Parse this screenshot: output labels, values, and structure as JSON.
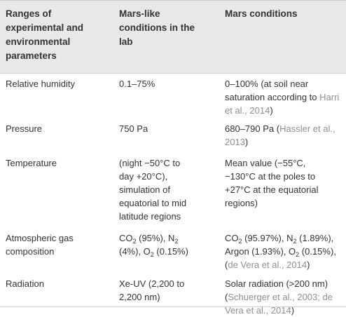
{
  "header": {
    "col1": "Ranges of\nexperimental and\nenvironmental\nparameters",
    "col2": "Mars-like\nconditions in the\nlab",
    "col3": "Mars conditions"
  },
  "rows": [
    {
      "parameter": "Relative humidity",
      "lab": "0.1–75%",
      "mars_text": "0–100% (at soil near\nsaturation according to ",
      "mars_ref": "Harri\net al., 2014",
      "mars_tail": ")"
    },
    {
      "parameter": "Pressure",
      "lab": "750 Pa",
      "mars_text": "680–790 Pa (",
      "mars_ref": "Hassler et al.,\n2013",
      "mars_tail": ")"
    },
    {
      "parameter": "Temperature",
      "lab": "(night −50°C to\nday +20°C),\nsimulation of\nequatorial to mid\nlatitude regions",
      "mars_text": "Mean value (−55°C,\n−130°C at the poles to\n+27°C at the equatorial\nregions)"
    },
    {
      "parameter": "Atmospheric gas\ncomposition",
      "lab_parts": [
        "CO",
        "2",
        " (95%), N",
        "2",
        "\n(4%), O",
        "2",
        " (0.15%)"
      ],
      "mars_parts": [
        "CO",
        "2",
        " (95.97%), N",
        "2",
        " (1.89%),\nArgon (1.93%), O",
        "2",
        " (0.15%),\n("
      ],
      "mars_ref": "de Vera et al., 2014",
      "mars_tail": ")"
    },
    {
      "parameter": "Radiation",
      "lab": "Xe-UV (2,200 to\n2,200 nm)",
      "mars_text": "Solar radiation (>200 nm)\n(",
      "mars_ref": "Schuerger et al., 2003; de\nVera et al., 2014",
      "mars_tail": ")"
    }
  ]
}
